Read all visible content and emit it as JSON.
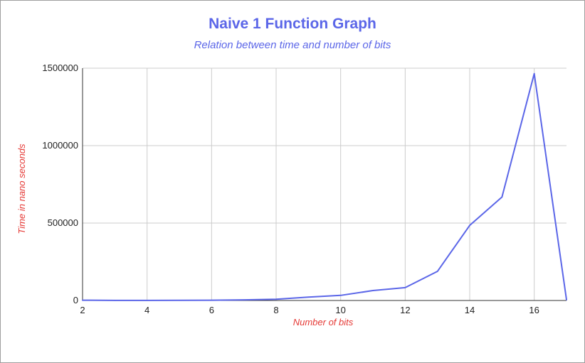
{
  "chart_data": {
    "type": "line",
    "title": "Naive 1 Function Graph",
    "subtitle": "Relation between time and number of bits",
    "xlabel": "Number of bits",
    "ylabel": "Time in nano seconds",
    "xlim": [
      2,
      17
    ],
    "ylim": [
      0,
      1500000
    ],
    "xticks": [
      2,
      4,
      6,
      8,
      10,
      12,
      14,
      16
    ],
    "xtick_labels": [
      "2",
      "4",
      "6",
      "8",
      "10",
      "12",
      "14",
      "16"
    ],
    "yticks": [
      0,
      500000,
      1000000,
      1500000
    ],
    "ytick_labels": [
      "0",
      "500000",
      "1000000",
      "1500000"
    ],
    "grid": true,
    "series": [
      {
        "color": "#5b66e8",
        "x": [
          2,
          3,
          4,
          5,
          6,
          7,
          8,
          9,
          10,
          11,
          12,
          13,
          14,
          15,
          16,
          17
        ],
        "values": [
          2000,
          500,
          500,
          1000,
          2000,
          4000,
          8000,
          22000,
          33000,
          64000,
          83000,
          188000,
          485000,
          668000,
          1465000,
          5000
        ]
      }
    ]
  }
}
